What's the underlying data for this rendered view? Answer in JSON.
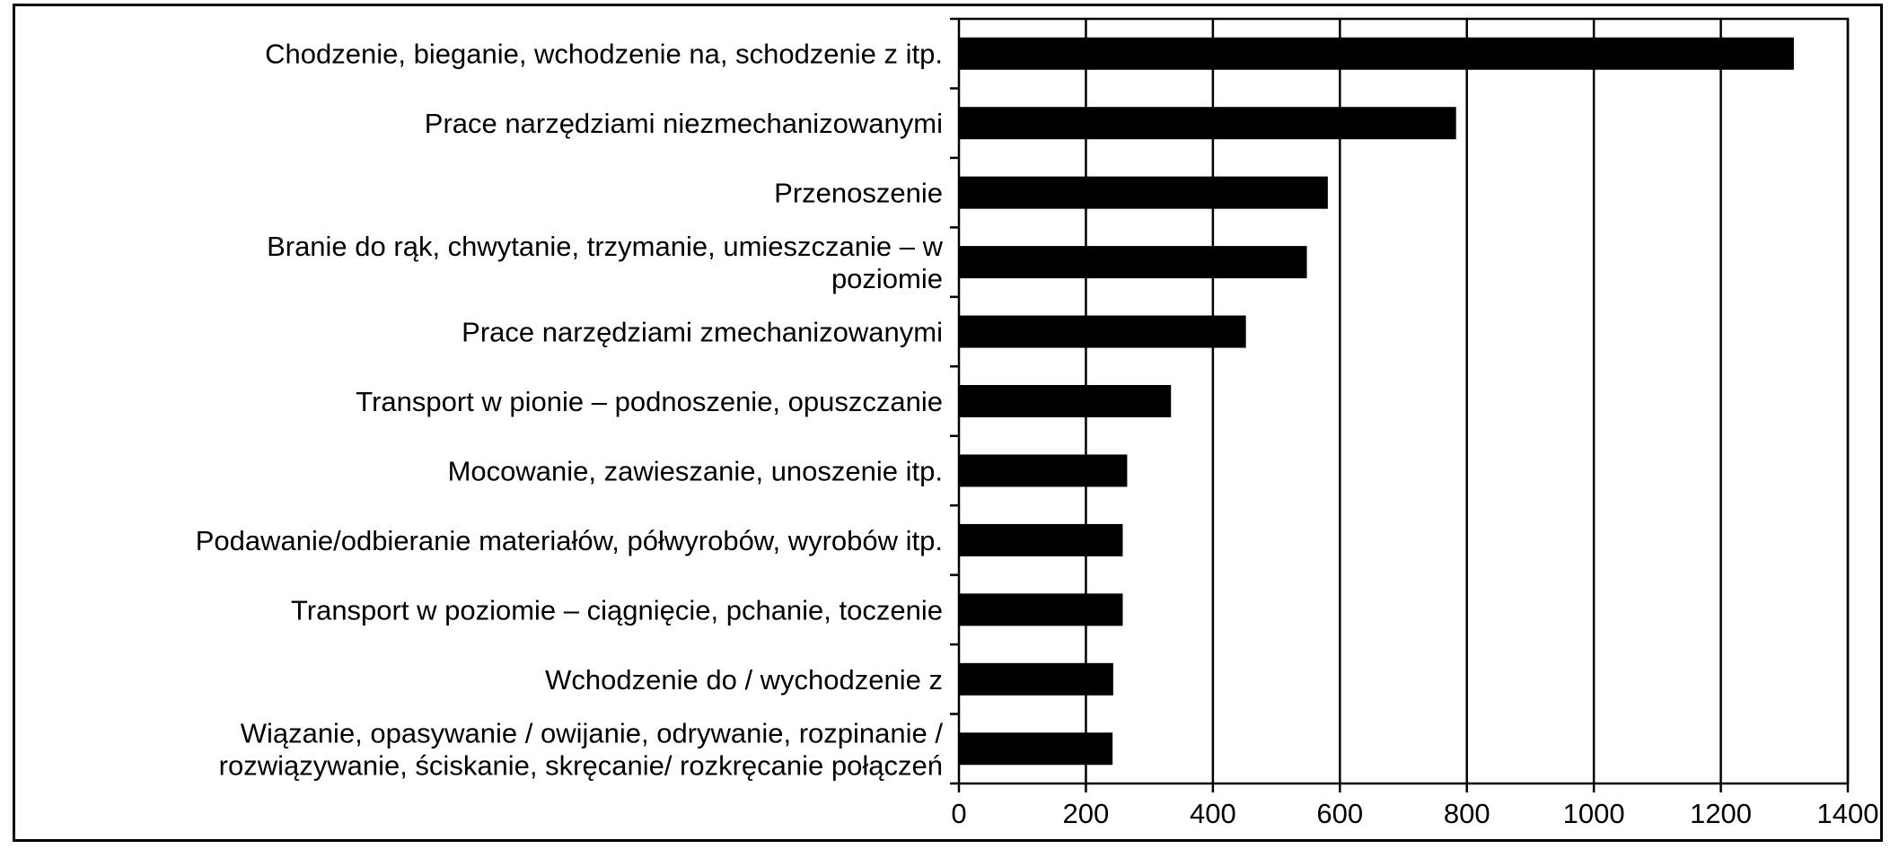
{
  "chart_data": {
    "type": "bar",
    "orientation": "horizontal",
    "categories": [
      "Chodzenie, bieganie, wchodzenie na, schodzenie z itp.",
      "Prace narzędziami niezmechanizowanymi",
      "Przenoszenie",
      "Branie do rąk, chwytanie, trzymanie, umieszczanie – w poziomie",
      "Prace narzędziami zmechanizowanymi",
      "Transport w pionie – podnoszenie, opuszczanie",
      "Mocowanie, zawieszanie, unoszenie itp.",
      "Podawanie/odbieranie materiałów, półwyrobów, wyrobów itp.",
      "Transport w poziomie – ciągnięcie, pchanie, toczenie",
      "Wchodzenie do / wychodzenie z",
      "Wiązanie, opasywanie / owijanie, odrywanie, rozpinanie / rozwiązywanie, ściskanie, skręcanie/ rozkręcanie połączeń"
    ],
    "category_lines": [
      [
        "Chodzenie, bieganie, wchodzenie na, schodzenie z itp."
      ],
      [
        "Prace narzędziami niezmechanizowanymi"
      ],
      [
        "Przenoszenie"
      ],
      [
        "Branie do rąk, chwytanie, trzymanie, umieszczanie – w",
        "poziomie"
      ],
      [
        "Prace narzędziami zmechanizowanymi"
      ],
      [
        "Transport w pionie – podnoszenie, opuszczanie"
      ],
      [
        "Mocowanie, zawieszanie, unoszenie itp."
      ],
      [
        "Podawanie/odbieranie materiałów, półwyrobów, wyrobów itp."
      ],
      [
        "Transport w poziomie – ciągnięcie, pchanie, toczenie"
      ],
      [
        "Wchodzenie do / wychodzenie z"
      ],
      [
        "Wiązanie, opasywanie / owijanie, odrywanie, rozpinanie /",
        "rozwiązywanie, ściskanie, skręcanie/ rozkręcanie połączeń"
      ]
    ],
    "values": [
      1315,
      783,
      581,
      548,
      452,
      334,
      265,
      258,
      258,
      243,
      242
    ],
    "xlim": [
      0,
      1400
    ],
    "xticks": [
      0,
      200,
      400,
      600,
      800,
      1000,
      1200,
      1400
    ],
    "xtick_labels": [
      "0",
      "200",
      "400",
      "600",
      "800",
      "1000",
      "1200",
      "1400"
    ],
    "title": "",
    "xlabel": "",
    "ylabel": "",
    "grid": "vertical",
    "legend": "none",
    "bar_color": "#000000",
    "grid_color": "#000000"
  }
}
